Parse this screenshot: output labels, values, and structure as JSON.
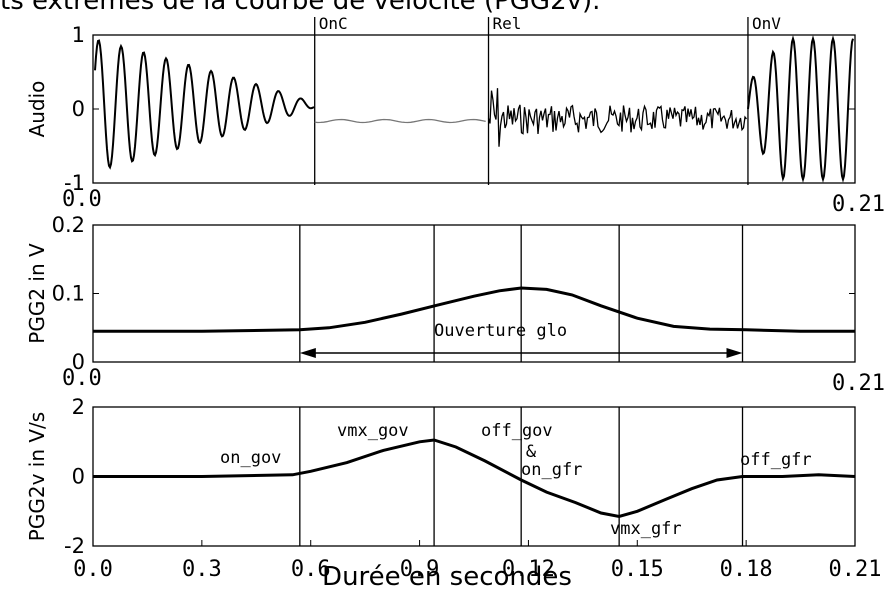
{
  "caption": "ts extrêmes de la courbe de vélocité (PGG2v).",
  "xlabel": "Durée en secondes",
  "chart_data": [
    {
      "type": "line",
      "ylabel": "Audio",
      "ylim": [
        -1,
        1
      ],
      "yticks": [
        "1",
        "0",
        "-1"
      ],
      "x_start_label": "0.0",
      "x_end_label": "0.21",
      "series": [],
      "events": [
        {
          "label": "OnC",
          "x": 0.0611
        },
        {
          "label": "Rel",
          "x": 0.109
        },
        {
          "label": "OnV",
          "x": 0.1805
        }
      ]
    },
    {
      "type": "line",
      "ylabel": "PGG2 in V",
      "ylim": [
        0,
        0.2
      ],
      "yticks": [
        "0.2",
        "0.1",
        "0"
      ],
      "x_start_label": "0.0",
      "x_end_label": "0.21",
      "series": [
        {
          "x": [
            0,
            0.03,
            0.057,
            0.065,
            0.075,
            0.085,
            0.095,
            0.105,
            0.112,
            0.118,
            0.125,
            0.132,
            0.14,
            0.15,
            0.16,
            0.17,
            0.18,
            0.195,
            0.21
          ],
          "y": [
            0.045,
            0.045,
            0.047,
            0.05,
            0.058,
            0.07,
            0.083,
            0.096,
            0.104,
            0.108,
            0.106,
            0.098,
            0.082,
            0.064,
            0.052,
            0.048,
            0.047,
            0.045,
            0.045
          ]
        }
      ],
      "markers": [
        0.057,
        0.094,
        0.118,
        0.145,
        0.179
      ],
      "annotation": {
        "text": "Ouverture glo",
        "arrow_from": 0.057,
        "arrow_to": 0.179
      }
    },
    {
      "type": "line",
      "ylabel": "PGG2v in V/s",
      "ylim": [
        -2,
        2
      ],
      "yticks": [
        "2",
        "0",
        "-2"
      ],
      "xticks": [
        "0.0",
        "0.3",
        "0.6",
        "0.9",
        "0.12",
        "0.15",
        "0.18",
        "0.21"
      ],
      "series": [
        {
          "x": [
            0,
            0.03,
            0.055,
            0.06,
            0.07,
            0.08,
            0.09,
            0.094,
            0.1,
            0.108,
            0.118,
            0.125,
            0.133,
            0.14,
            0.145,
            0.15,
            0.158,
            0.165,
            0.172,
            0.179,
            0.19,
            0.2,
            0.21
          ],
          "y": [
            0,
            0,
            0.05,
            0.15,
            0.4,
            0.75,
            1.0,
            1.05,
            0.85,
            0.45,
            -0.1,
            -0.45,
            -0.75,
            -1.05,
            -1.15,
            -1.0,
            -0.65,
            -0.35,
            -0.1,
            0,
            0,
            0.05,
            0
          ]
        }
      ],
      "markers": [
        0.057,
        0.094,
        0.118,
        0.145,
        0.179
      ],
      "labels": [
        "on_gov",
        "vmx_gov",
        "off_gov",
        "&",
        "on_gfr",
        "vmx_gfr",
        "off_gfr"
      ]
    }
  ]
}
